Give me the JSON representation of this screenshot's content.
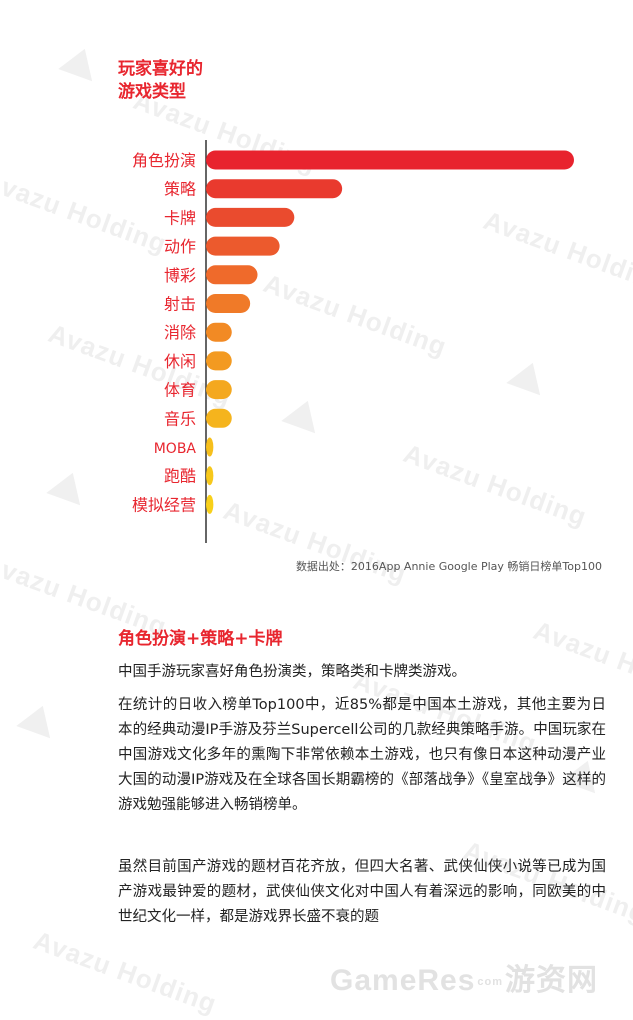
{
  "chart_data": {
    "type": "bar",
    "orientation": "horizontal",
    "title_line1": "玩家喜好的",
    "title_line2": "游戏类型",
    "categories": [
      "角色扮演",
      "策略",
      "卡牌",
      "动作",
      "博彩",
      "射击",
      "消除",
      "休闲",
      "体育",
      "音乐",
      "MOBA",
      "跑酷",
      "模拟经营"
    ],
    "values": [
      100,
      37,
      24,
      20,
      14,
      12,
      7,
      7,
      7,
      7,
      2,
      2,
      2
    ],
    "xlim": [
      0,
      100
    ],
    "grid": false,
    "legend": "none",
    "colors": [
      "#e8232e",
      "#e93a2e",
      "#ea4b2e",
      "#ec5a2d",
      "#ef6a2b",
      "#f07a28",
      "#f28a24",
      "#f39a21",
      "#f4a81f",
      "#f5b41d",
      "#f6bf1c",
      "#f7c81b",
      "#f8d01a"
    ]
  },
  "source_note": "数据出处：2016App Annie Google Play 畅销日榜单Top100",
  "section": {
    "title": "角色扮演+策略+卡牌",
    "paragraphs": [
      "中国手游玩家喜好角色扮演类，策略类和卡牌类游戏。",
      "在统计的日收入榜单Top100中，近85%都是中国本土游戏，其他主要为日本的经典动漫IP手游及芬兰Supercell公司的几款经典策略手游。中国玩家在中国游戏文化多年的熏陶下非常依赖本土游戏，也只有像日本这种动漫产业大国的动漫IP游戏及在全球各国长期霸榜的《部落战争》《皇室战争》这样的游戏勉强能够进入畅销榜单。",
      "虽然目前国产游戏的题材百花齐放，但四大名著、武侠仙侠小说等已成为国产游戏最钟爱的题材，武侠仙侠文化对中国人有着深远的影响，同欧美的中世纪文化一样，都是游戏界长盛不衰的题"
    ]
  },
  "watermark": {
    "text": "Avazu Holding",
    "footer_left": "GameRes",
    "footer_small": "com",
    "footer_right": "游资网"
  },
  "theme": {
    "accent": "#e8262f",
    "axis": "#333333"
  }
}
